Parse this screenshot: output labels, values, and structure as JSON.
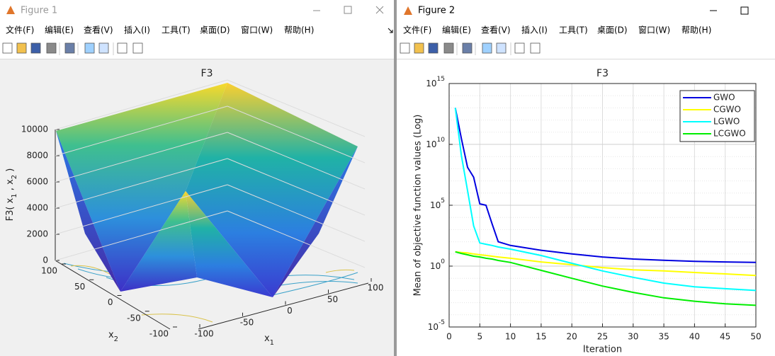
{
  "windows": [
    {
      "title": "Figure 1",
      "menu": [
        "文件(F)",
        "编辑(E)",
        "查看(V)",
        "插入(I)",
        "工具(T)",
        "桌面(D)",
        "窗口(W)",
        "帮助(H)"
      ]
    },
    {
      "title": "Figure 2",
      "menu": [
        "文件(F)",
        "编辑(E)",
        "查看(V)",
        "插入(I)",
        "工具(T)",
        "桌面(D)",
        "窗口(W)",
        "帮助(H)"
      ]
    }
  ],
  "chart_data": [
    {
      "type": "surface",
      "title": "F3",
      "zlabel": [
        "F3( x",
        "1",
        " , x",
        "2",
        " )"
      ],
      "xlabel": [
        "x",
        "1"
      ],
      "ylabel": [
        "x",
        "2"
      ],
      "zlim": [
        0,
        10000
      ],
      "zticks": [
        0,
        2000,
        4000,
        6000,
        8000,
        10000
      ],
      "xlim": [
        -100,
        100
      ],
      "xticks": [
        -100,
        -50,
        0,
        50,
        100
      ],
      "ylim": [
        -100,
        100
      ],
      "yticks": [
        -100,
        -50,
        0,
        50,
        100
      ],
      "grid": true
    },
    {
      "type": "line",
      "title": "F3",
      "xlabel": "Iteration",
      "ylabel": "Mean of objective function values (Log)",
      "yscale": "log",
      "grid": true,
      "legend": "northeast",
      "xlim": [
        0,
        50
      ],
      "xticks": [
        0,
        5,
        10,
        15,
        20,
        25,
        30,
        35,
        40,
        45,
        50
      ],
      "ylim": [
        1e-05,
        1000000000000000.0
      ],
      "yticks": [
        {
          "value": 1e-05,
          "label": "10",
          "sup": "-5"
        },
        {
          "value": 1,
          "label": "10",
          "sup": "0"
        },
        {
          "value": 100000.0,
          "label": "10",
          "sup": "5"
        },
        {
          "value": 10000000000.0,
          "label": "10",
          "sup": "10"
        },
        {
          "value": 1000000000000000.0,
          "label": "10",
          "sup": "15"
        }
      ],
      "x": [
        1,
        2,
        3,
        4,
        5,
        6,
        7,
        8,
        10,
        15,
        20,
        25,
        30,
        35,
        40,
        45,
        50
      ],
      "series": [
        {
          "name": "GWO",
          "color": "#0000e0",
          "values": [
            10000000000000.0,
            30000000000.0,
            130000000.0,
            20000000.0,
            130000.0,
            100000.0,
            3000,
            100,
            50,
            20,
            10,
            5.6,
            3.8,
            3,
            2.5,
            2.2,
            2
          ]
        },
        {
          "name": "CGWO",
          "color": "#ffff00",
          "values": [
            15,
            13,
            12,
            10,
            8.5,
            7.5,
            6.5,
            5.6,
            4.4,
            2.2,
            1.3,
            0.76,
            0.5,
            0.4,
            0.3,
            0.23,
            0.17
          ]
        },
        {
          "name": "LGWO",
          "color": "#00ffff",
          "values": [
            10000000000000.0,
            1200000000.0,
            1600000.0,
            2000,
            80,
            63,
            50,
            37,
            25,
            7.4,
            1.7,
            0.4,
            0.12,
            0.04,
            0.02,
            0.014,
            0.01
          ]
        },
        {
          "name": "LCGWO",
          "color": "#00ee00",
          "values": [
            15,
            11,
            8.5,
            6.5,
            5.6,
            4.4,
            3.8,
            2.9,
            2,
            0.45,
            0.1,
            0.023,
            0.007,
            0.0025,
            0.0013,
            0.0008,
            0.0006
          ]
        }
      ]
    }
  ]
}
